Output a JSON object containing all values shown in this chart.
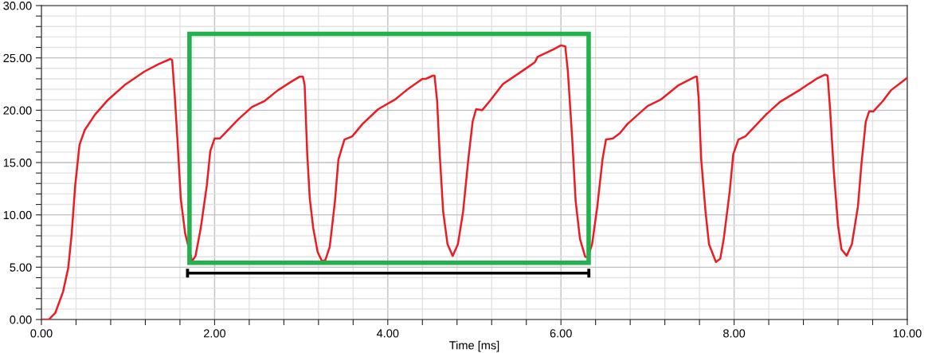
{
  "chart_data": {
    "type": "line",
    "xlabel": "Time [ms]",
    "xlim": [
      0,
      10
    ],
    "ylim": [
      0,
      30
    ],
    "xticks": [
      {
        "value": 0,
        "label": "0.00"
      },
      {
        "value": 0.4,
        "label": null
      },
      {
        "value": 0.8,
        "label": null
      },
      {
        "value": 1.2,
        "label": null
      },
      {
        "value": 1.6,
        "label": null
      },
      {
        "value": 2,
        "label": "2.00"
      },
      {
        "value": 2.4,
        "label": null
      },
      {
        "value": 2.8,
        "label": null
      },
      {
        "value": 3.2,
        "label": null
      },
      {
        "value": 3.6,
        "label": null
      },
      {
        "value": 4,
        "label": "4.00"
      },
      {
        "value": 4.4,
        "label": null
      },
      {
        "value": 4.8,
        "label": null
      },
      {
        "value": 5.2,
        "label": null
      },
      {
        "value": 5.6,
        "label": null
      },
      {
        "value": 6,
        "label": "6.00"
      },
      {
        "value": 6.4,
        "label": null
      },
      {
        "value": 6.8,
        "label": null
      },
      {
        "value": 7.2,
        "label": null
      },
      {
        "value": 7.6,
        "label": null
      },
      {
        "value": 8,
        "label": "8.00"
      },
      {
        "value": 8.4,
        "label": null
      },
      {
        "value": 8.8,
        "label": null
      },
      {
        "value": 9.2,
        "label": null
      },
      {
        "value": 9.6,
        "label": null
      },
      {
        "value": 10,
        "label": "10.00"
      }
    ],
    "yticks": [
      {
        "value": 0,
        "label": "0.00"
      },
      {
        "value": 1,
        "label": null
      },
      {
        "value": 2,
        "label": null
      },
      {
        "value": 3,
        "label": null
      },
      {
        "value": 4,
        "label": null
      },
      {
        "value": 5,
        "label": "5.00"
      },
      {
        "value": 6,
        "label": null
      },
      {
        "value": 7,
        "label": null
      },
      {
        "value": 8,
        "label": null
      },
      {
        "value": 9,
        "label": null
      },
      {
        "value": 10,
        "label": "10.00"
      },
      {
        "value": 11,
        "label": null
      },
      {
        "value": 12,
        "label": null
      },
      {
        "value": 13,
        "label": null
      },
      {
        "value": 14,
        "label": null
      },
      {
        "value": 15,
        "label": "15.00"
      },
      {
        "value": 16,
        "label": null
      },
      {
        "value": 17,
        "label": null
      },
      {
        "value": 18,
        "label": null
      },
      {
        "value": 19,
        "label": null
      },
      {
        "value": 20,
        "label": "20.00"
      },
      {
        "value": 21,
        "label": null
      },
      {
        "value": 22,
        "label": null
      },
      {
        "value": 23,
        "label": null
      },
      {
        "value": 24,
        "label": null
      },
      {
        "value": 25,
        "label": "25.00"
      },
      {
        "value": 26,
        "label": null
      },
      {
        "value": 27,
        "label": null
      },
      {
        "value": 28,
        "label": null
      },
      {
        "value": 29,
        "label": null
      },
      {
        "value": 30,
        "label": "30.00"
      }
    ],
    "grid": true,
    "marker": "none",
    "line_style": "solid",
    "series": [
      {
        "color": "#ed1c24",
        "x": [
          0,
          0.086,
          0.16,
          0.25,
          0.31,
          0.35,
          0.39,
          0.44,
          0.5,
          0.62,
          0.77,
          0.96,
          1.19,
          1.35,
          1.49,
          1.51,
          1.54,
          1.57,
          1.61,
          1.66,
          1.74,
          1.78,
          1.84,
          1.91,
          1.95,
          2.0,
          2.06,
          2.12,
          2.27,
          2.43,
          2.58,
          2.73,
          2.88,
          2.98,
          3.02,
          3.04,
          3.07,
          3.1,
          3.14,
          3.19,
          3.24,
          3.28,
          3.33,
          3.39,
          3.43,
          3.5,
          3.59,
          3.71,
          3.89,
          4.08,
          4.23,
          4.4,
          4.44,
          4.52,
          4.54,
          4.57,
          4.6,
          4.64,
          4.69,
          4.75,
          4.81,
          4.87,
          4.93,
          4.98,
          5.02,
          5.09,
          5.18,
          5.33,
          5.58,
          5.7,
          5.73,
          5.91,
          6.0,
          6.05,
          6.08,
          6.13,
          6.17,
          6.22,
          6.28,
          6.31,
          6.36,
          6.42,
          6.48,
          6.52,
          6.6,
          6.68,
          6.77,
          7.0,
          7.15,
          7.36,
          7.55,
          7.57,
          7.59,
          7.62,
          7.67,
          7.71,
          7.79,
          7.84,
          7.88,
          7.95,
          7.99,
          8.05,
          8.13,
          8.37,
          8.53,
          8.77,
          8.95,
          9.05,
          9.08,
          9.11,
          9.15,
          9.2,
          9.24,
          9.3,
          9.36,
          9.43,
          9.47,
          9.52,
          9.56,
          9.61,
          9.72,
          9.81,
          10.0
        ],
        "values": [
          0,
          0,
          0.63,
          2.66,
          4.94,
          8.23,
          12.8,
          16.7,
          18.1,
          19.6,
          21.0,
          22.4,
          23.7,
          24.4,
          24.9,
          24.8,
          21.4,
          17.3,
          11.5,
          8.23,
          5.57,
          6.08,
          8.73,
          12.8,
          16.1,
          17.3,
          17.3,
          17.8,
          19.1,
          20.3,
          20.9,
          21.9,
          22.7,
          23.2,
          23.2,
          22.4,
          15.8,
          11.5,
          8.7,
          6.46,
          5.57,
          5.7,
          6.96,
          11.3,
          15.3,
          17.2,
          17.5,
          18.7,
          20.1,
          21.0,
          22.0,
          23.0,
          23.0,
          23.3,
          23.3,
          20.9,
          15.8,
          10.3,
          7.2,
          6.08,
          7.2,
          10.3,
          15.3,
          18.9,
          20.1,
          20.0,
          20.9,
          22.5,
          23.9,
          24.6,
          25.1,
          25.8,
          26.2,
          26.1,
          23.7,
          17.3,
          11.3,
          7.7,
          6.0,
          5.95,
          7.2,
          10.8,
          15.3,
          17.2,
          17.3,
          17.8,
          18.7,
          20.4,
          21.0,
          22.4,
          23.2,
          23.2,
          21.2,
          15.3,
          10.3,
          7.2,
          5.5,
          5.8,
          7.7,
          12.3,
          15.8,
          17.2,
          17.5,
          19.6,
          20.8,
          22.0,
          23.0,
          23.4,
          23.3,
          19.9,
          14.3,
          9.0,
          6.7,
          6.1,
          7.2,
          10.8,
          14.8,
          18.9,
          19.9,
          19.9,
          20.9,
          21.9,
          23.1
        ]
      }
    ]
  }
}
